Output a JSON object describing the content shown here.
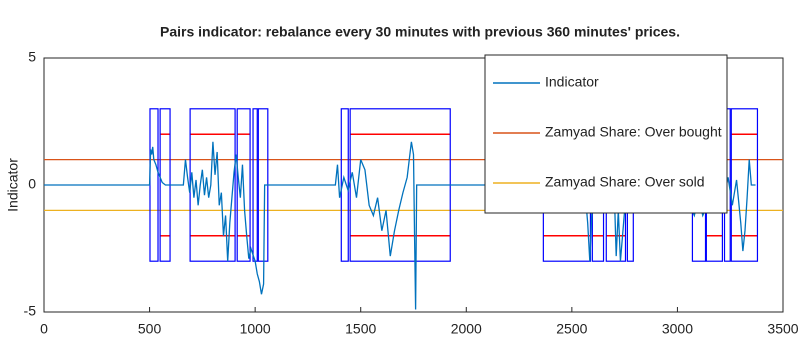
{
  "chart_data": {
    "type": "line",
    "title": "Pairs indicator: rebalance every 30 minutes with previous 360 minutes' prices.",
    "ylabel": "Indicator",
    "xlim": [
      0,
      3500
    ],
    "xticks": [
      0,
      500,
      1000,
      1500,
      2000,
      2500,
      3000,
      3500
    ],
    "ylim": [
      -5,
      5
    ],
    "yticks": [
      -5,
      0,
      5
    ],
    "legend": "northeast",
    "series": [
      {
        "name": "Indicator",
        "color": "#0072bd",
        "x": [
          0,
          500,
          505,
          510,
          515,
          520,
          530,
          540,
          550,
          560,
          575,
          660,
          670,
          680,
          690,
          700,
          710,
          720,
          730,
          740,
          750,
          760,
          770,
          780,
          790,
          800,
          810,
          820,
          830,
          840,
          850,
          860,
          870,
          880,
          890,
          900,
          910,
          920,
          930,
          940,
          950,
          960,
          970,
          980,
          1000,
          1010,
          1020,
          1030,
          1040,
          1045,
          1380,
          1390,
          1400,
          1420,
          1440,
          1460,
          1480,
          1500,
          1520,
          1540,
          1560,
          1580,
          1600,
          1620,
          1640,
          1660,
          1680,
          1700,
          1720,
          1740,
          1750,
          1755,
          1760,
          1765,
          2560,
          2575,
          2585,
          2595,
          2610,
          2700,
          2710,
          2720,
          2730,
          2745,
          2760,
          3050,
          3060,
          3080,
          3100,
          3120,
          3140,
          3160,
          3180,
          3200,
          3220,
          3240,
          3260,
          3280,
          3300,
          3310,
          3320,
          3330,
          3340,
          3350,
          3370
        ],
        "values": [
          0,
          0,
          1.4,
          1.2,
          1.5,
          1.0,
          0.8,
          0.5,
          0.3,
          0.1,
          0,
          0,
          1.0,
          0.3,
          -0.3,
          0.5,
          -0.5,
          0.2,
          -0.8,
          0.0,
          0.6,
          -0.4,
          0.3,
          -0.5,
          0.0,
          1.7,
          0.4,
          1.3,
          -0.8,
          -0.3,
          -2.0,
          -1.2,
          -3.0,
          -1.5,
          -0.5,
          0.5,
          1.2,
          0.3,
          -0.5,
          0.8,
          -1.0,
          -2.0,
          -2.9,
          -2.5,
          -3.0,
          -3.5,
          -3.8,
          -4.3,
          -3.9,
          0,
          0,
          0.8,
          -0.5,
          0.3,
          -0.2,
          0.5,
          -0.5,
          1.0,
          0.6,
          -0.8,
          -1.2,
          -0.5,
          -1.8,
          -1.0,
          -2.8,
          -1.8,
          -1.0,
          -0.3,
          0.3,
          1.7,
          1.2,
          -2.0,
          -4.9,
          0,
          0,
          -1.5,
          -3.0,
          -1.0,
          0,
          0,
          -2.8,
          -1.0,
          -3.0,
          -1.5,
          0,
          0,
          -0.8,
          -1.2,
          -0.5,
          -1.2,
          -0.8,
          -0.3,
          0.5,
          1.0,
          -0.5,
          0.3,
          -0.8,
          0.2,
          -1.5,
          -2.6,
          -1.8,
          -0.5,
          1.0,
          0,
          0
        ]
      },
      {
        "name": "Zamyad Share: Over bought",
        "color": "#d95319",
        "x": [
          0,
          3500
        ],
        "values": [
          1,
          1
        ]
      },
      {
        "name": "Zamyad Share: Over sold",
        "color": "#edb120",
        "x": [
          0,
          3500
        ],
        "values": [
          -1,
          -1
        ]
      }
    ],
    "box_color": "#0000ff",
    "level_color": "#ff0000",
    "boxes": [
      {
        "x": [
          502,
          540
        ],
        "y": [
          -3,
          3
        ]
      },
      {
        "x": [
          550,
          597
        ],
        "y": [
          -3,
          3
        ],
        "levels": [
          -2,
          2
        ]
      },
      {
        "x": [
          692,
          905
        ],
        "y": [
          -3,
          3
        ],
        "levels": [
          -2,
          2
        ]
      },
      {
        "x": [
          915,
          976
        ],
        "y": [
          -3,
          3
        ],
        "levels": [
          -2,
          2
        ]
      },
      {
        "x": [
          990,
          1010
        ],
        "y": [
          -3,
          3
        ]
      },
      {
        "x": [
          1015,
          1060
        ],
        "y": [
          -3,
          3
        ]
      },
      {
        "x": [
          1408,
          1441
        ],
        "y": [
          -3,
          3
        ]
      },
      {
        "x": [
          1450,
          1924
        ],
        "y": [
          -3,
          3
        ],
        "levels": [
          -2,
          2
        ]
      },
      {
        "x": [
          2365,
          2588
        ],
        "y": [
          -3,
          3
        ],
        "levels": [
          -2,
          2
        ]
      },
      {
        "x": [
          2597,
          2650
        ],
        "y": [
          -3,
          3
        ],
        "levels": [
          -2,
          2
        ]
      },
      {
        "x": [
          2663,
          2754
        ],
        "y": [
          -3,
          3
        ],
        "levels": [
          -2,
          2
        ]
      },
      {
        "x": [
          2763,
          2791
        ],
        "y": [
          -3,
          3
        ]
      },
      {
        "x": [
          3071,
          3133
        ],
        "y": [
          -3,
          3
        ]
      },
      {
        "x": [
          3137,
          3213
        ],
        "y": [
          -3,
          3
        ],
        "levels": [
          -2,
          2
        ]
      },
      {
        "x": [
          3223,
          3250
        ],
        "y": [
          -3,
          3
        ]
      },
      {
        "x": [
          3255,
          3379
        ],
        "y": [
          -3,
          3
        ],
        "levels": [
          -2,
          2
        ]
      }
    ]
  }
}
